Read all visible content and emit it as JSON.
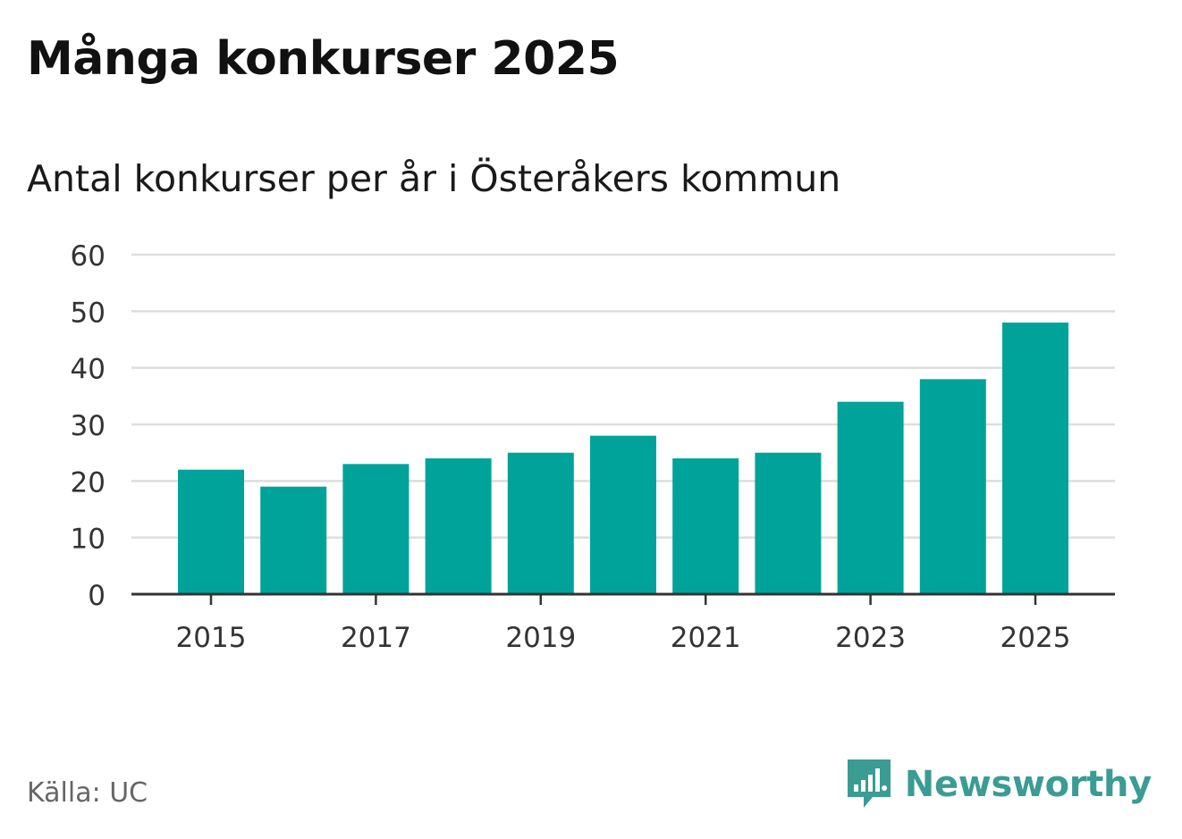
{
  "header": {
    "title": "Många konkurser 2025",
    "subtitle": "Antal konkurser per år i Österåkers kommun"
  },
  "footer": {
    "source": "Källa: UC",
    "brand": "Newsworthy",
    "brand_icon": "newsworthy-logo-icon",
    "brand_color": "#3a9c92"
  },
  "chart_data": {
    "type": "bar",
    "categories": [
      "2015",
      "2016",
      "2017",
      "2018",
      "2019",
      "2020",
      "2021",
      "2022",
      "2023",
      "2024",
      "2025"
    ],
    "values": [
      22,
      19,
      23,
      24,
      25,
      28,
      24,
      25,
      34,
      38,
      48
    ],
    "x_tick_labels": [
      "2015",
      "2017",
      "2019",
      "2021",
      "2023",
      "2025"
    ],
    "y_ticks": [
      0,
      10,
      20,
      30,
      40,
      50,
      60
    ],
    "ylim": [
      0,
      60
    ],
    "grid": true,
    "legend": "none",
    "bar_color": "#00a39a"
  }
}
